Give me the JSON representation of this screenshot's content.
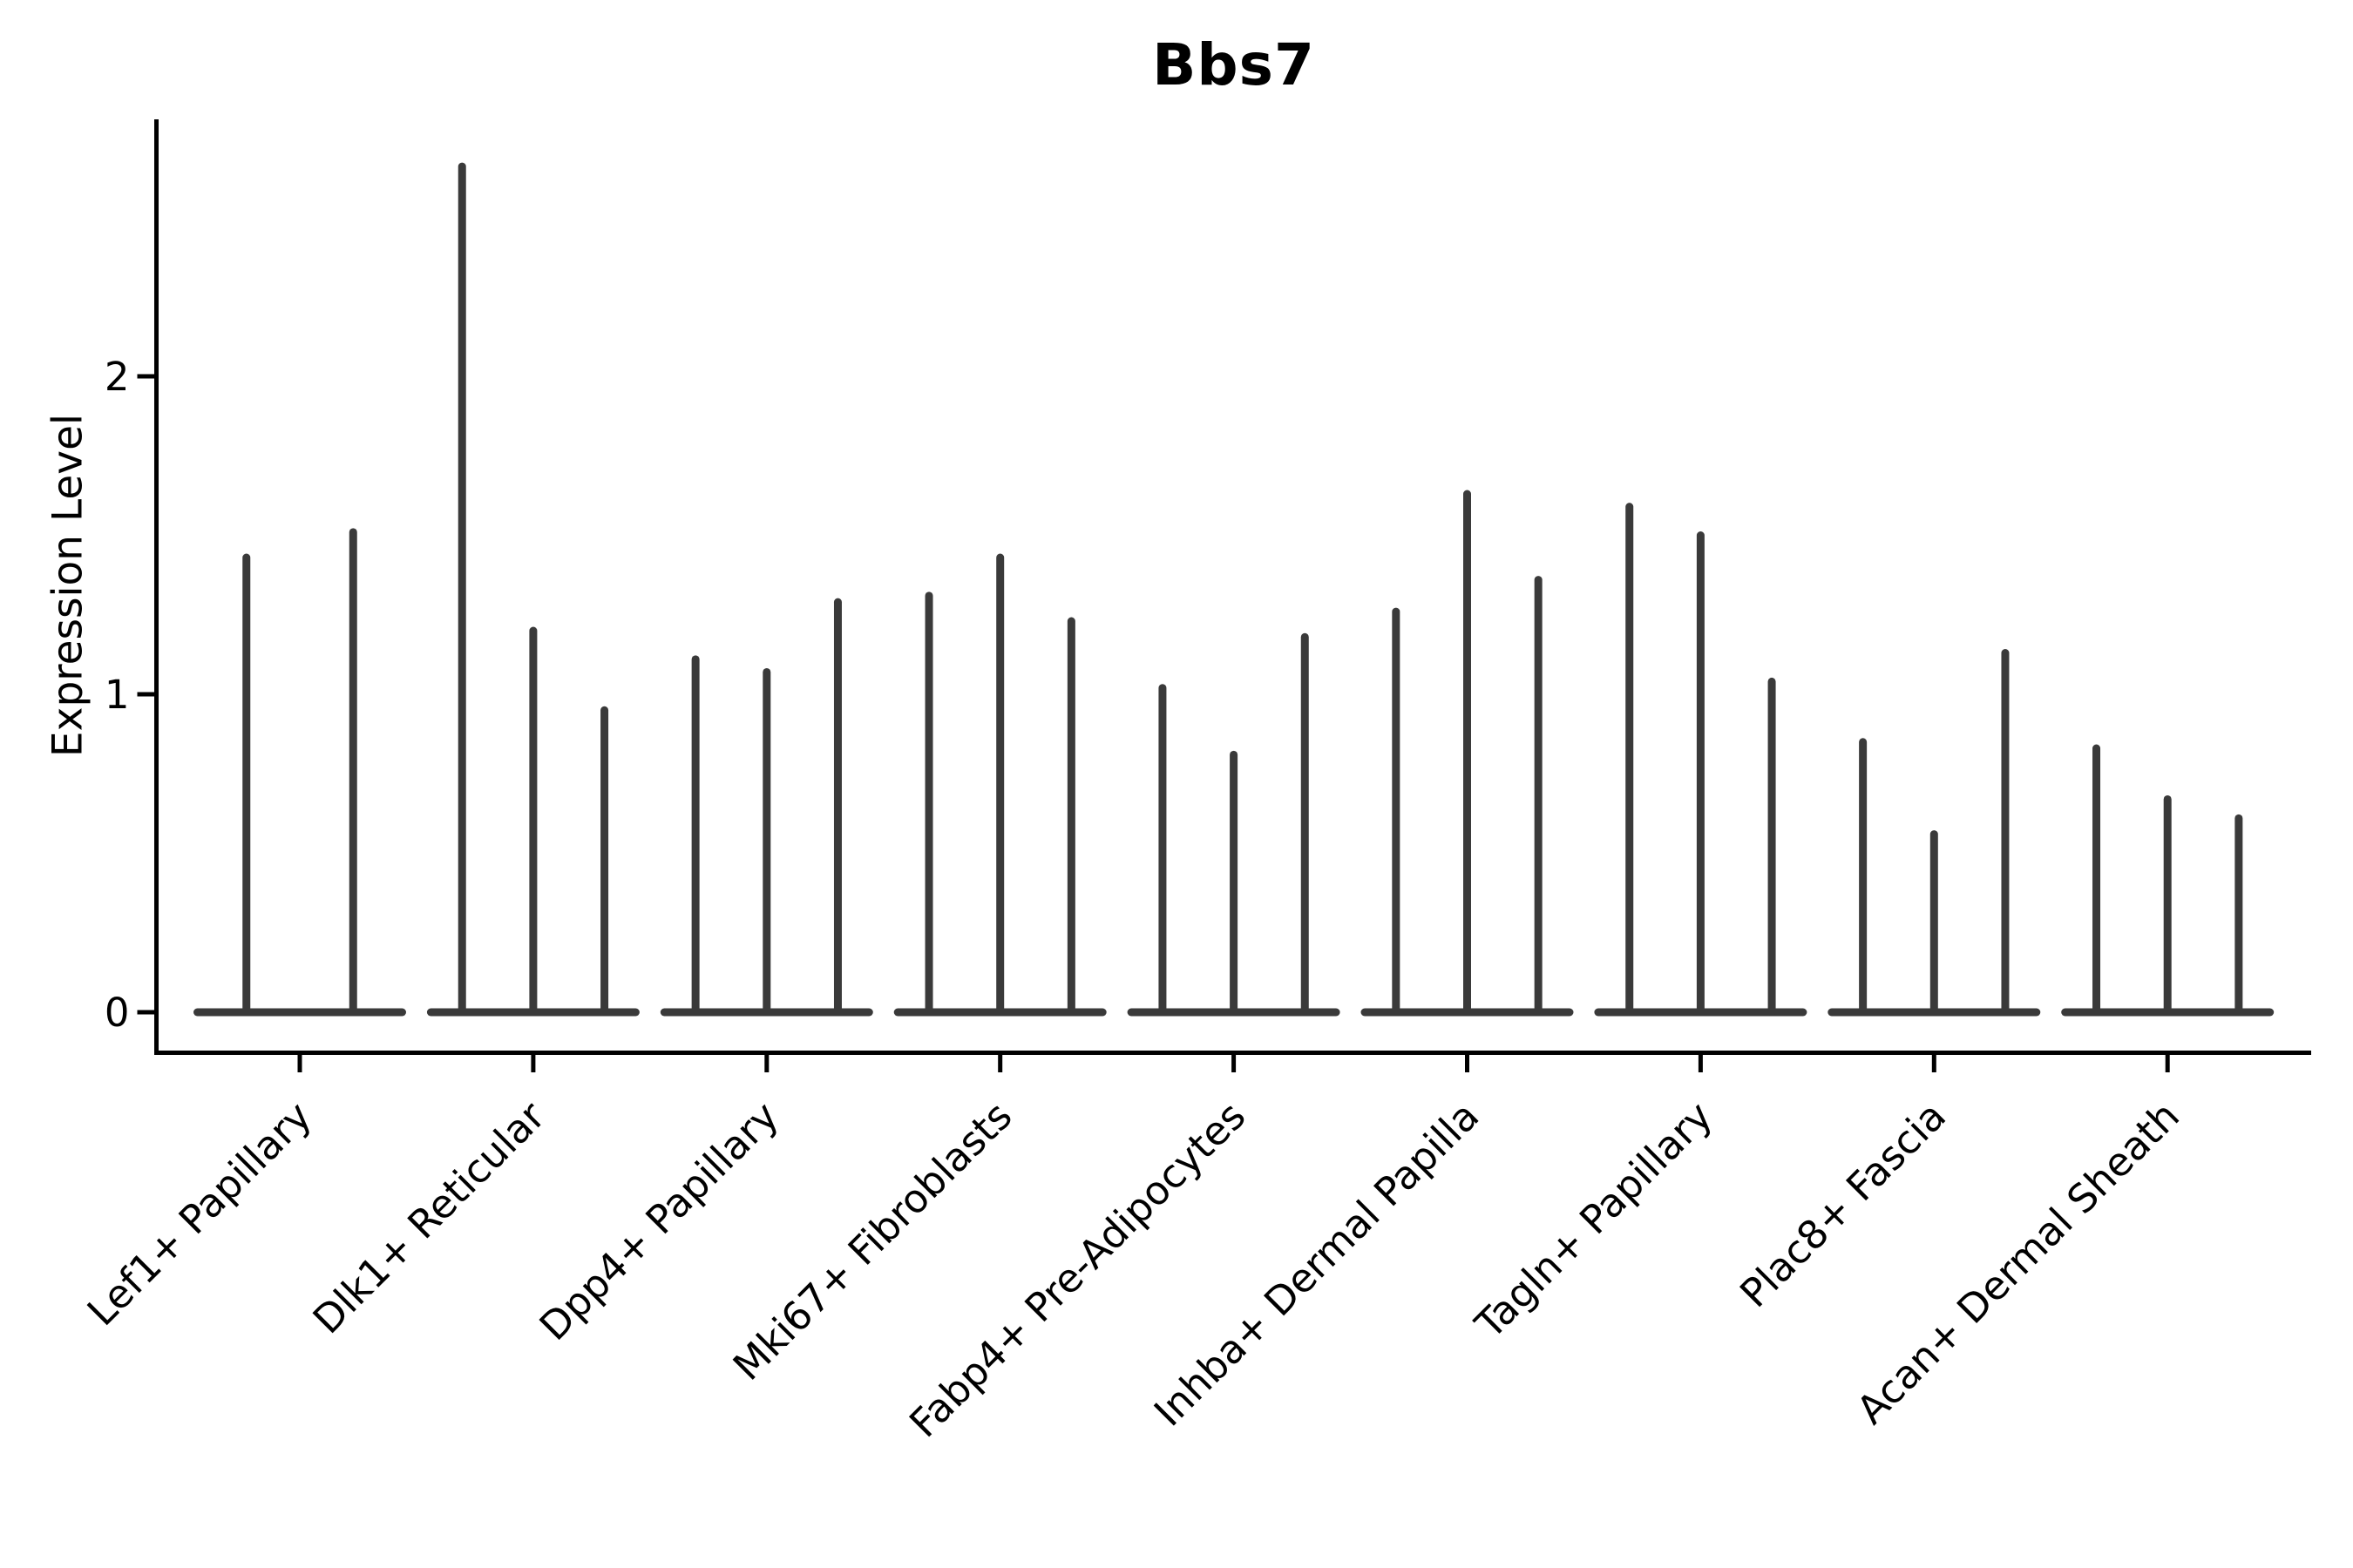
{
  "chart_data": {
    "type": "violin",
    "title": "Bbs7",
    "xlabel": "",
    "ylabel": "Expression Level",
    "yticks": [
      0,
      1,
      2
    ],
    "ylim": [
      -0.13,
      2.81
    ],
    "grid": false,
    "legend": "none",
    "violin_style": "collapsed-spike violins: wide flat base at zero expression with a thin vertical spike up to the maximum expression value",
    "categories": [
      "Lef1+ Papillary",
      "Dlk1+ Reticular",
      "Dpp4+ Papillary",
      "Mki67+ Fibroblasts",
      "Fabp4+ Pre-Adipocytes",
      "Inhba+ Dermal Papilla",
      "Tagln+ Papillary",
      "Plac8+ Fascia",
      "Acan+ Dermal Sheath"
    ],
    "groups": [
      {
        "label": "Lef1+ Papillary",
        "baseline_value": 0,
        "spike_maxima": [
          1.43,
          1.51
        ]
      },
      {
        "label": "Dlk1+ Reticular",
        "baseline_value": 0,
        "spike_maxima": [
          2.66,
          1.2,
          0.95
        ]
      },
      {
        "label": "Dpp4+ Papillary",
        "baseline_value": 0,
        "spike_maxima": [
          1.11,
          1.07,
          1.29
        ]
      },
      {
        "label": "Mki67+ Fibroblasts",
        "baseline_value": 0,
        "spike_maxima": [
          1.31,
          1.43,
          1.23
        ]
      },
      {
        "label": "Fabp4+ Pre-Adipocytes",
        "baseline_value": 0,
        "spike_maxima": [
          1.02,
          0.81,
          1.18
        ]
      },
      {
        "label": "Inhba+ Dermal Papilla",
        "baseline_value": 0,
        "spike_maxima": [
          1.26,
          1.63,
          1.36
        ]
      },
      {
        "label": "Tagln+ Papillary",
        "baseline_value": 0,
        "spike_maxima": [
          1.59,
          1.5,
          1.04
        ]
      },
      {
        "label": "Plac8+ Fascia",
        "baseline_value": 0,
        "spike_maxima": [
          0.85,
          0.56,
          1.13
        ]
      },
      {
        "label": "Acan+ Dermal Sheath",
        "baseline_value": 0,
        "spike_maxima": [
          0.83,
          0.67,
          0.61
        ]
      }
    ],
    "colors": {
      "violin": "#3a3a3a",
      "axis": "#000000",
      "text": "#000000",
      "background": "#ffffff"
    }
  }
}
